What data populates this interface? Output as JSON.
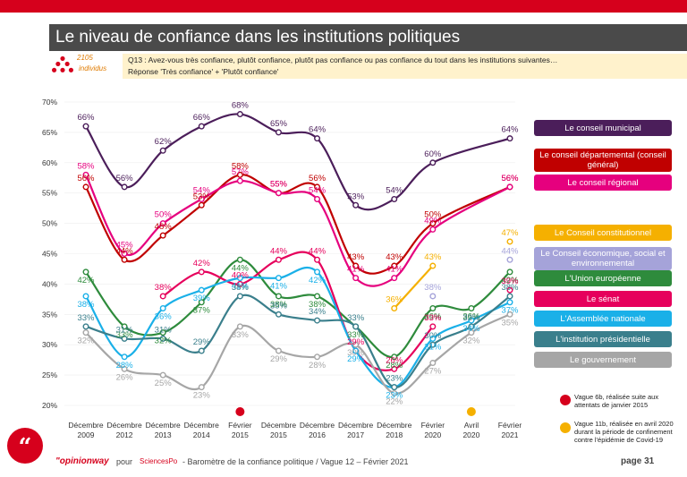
{
  "header": {
    "title": "Le niveau de confiance dans les institutions politiques",
    "sample_n": "2105",
    "sample_unit": "individus",
    "question": "Q13 : Avez-vous très confiance, plutôt confiance, plutôt pas confiance ou pas confiance du tout dans les institutions suivantes…",
    "answer": "Réponse 'Très confiance' + 'Plutôt confiance'"
  },
  "chart_data": {
    "type": "line",
    "ylim": [
      20,
      70
    ],
    "yticks": [
      "20%",
      "25%",
      "30%",
      "35%",
      "40%",
      "45%",
      "50%",
      "55%",
      "60%",
      "65%",
      "70%"
    ],
    "categories": [
      [
        "Décembre",
        "2009"
      ],
      [
        "Décembre",
        "2012"
      ],
      [
        "Décembre",
        "2013"
      ],
      [
        "Décembre",
        "2014"
      ],
      [
        "Février",
        "2015"
      ],
      [
        "Décembre",
        "2015"
      ],
      [
        "Décembre",
        "2016"
      ],
      [
        "Décembre",
        "2017"
      ],
      [
        "Décembre",
        "2018"
      ],
      [
        "Février",
        "2020"
      ],
      [
        "Avril",
        "2020"
      ],
      [
        "Février",
        "2021"
      ]
    ],
    "series": [
      {
        "name": "Le conseil municipal",
        "color": "#4b1e5a",
        "values": [
          66,
          56,
          62,
          66,
          68,
          65,
          64,
          53,
          54,
          60,
          null,
          64
        ],
        "labels": [
          "66%",
          "56%",
          "62%",
          "66%",
          "68%",
          "65%",
          "64%",
          "53%",
          "54%",
          "60%",
          null,
          "64%"
        ]
      },
      {
        "name": "Le conseil départemental (conseil général)",
        "color": "#c00000",
        "values": [
          56,
          44,
          48,
          53,
          58,
          55,
          56,
          43,
          43,
          50,
          null,
          56
        ],
        "labels": [
          "56%",
          "44%",
          "48%",
          "53%",
          "58%",
          "55%",
          "56%",
          "43%",
          "43%",
          "50%",
          null,
          "56%"
        ]
      },
      {
        "name": "Le conseil régional",
        "color": "#e6007e",
        "values": [
          58,
          45,
          50,
          54,
          57,
          55,
          54,
          41,
          41,
          49,
          null,
          56
        ],
        "labels": [
          "58%",
          "45%",
          "50%",
          "54%",
          "57%",
          "55%",
          "54%",
          "41%",
          "41%",
          "49%",
          null,
          "56%"
        ]
      },
      {
        "name": "Le Conseil constitutionnel",
        "color": "#f5b000",
        "values": [
          null,
          null,
          null,
          null,
          null,
          null,
          null,
          null,
          36,
          43,
          null,
          47
        ],
        "labels": [
          null,
          null,
          null,
          null,
          null,
          null,
          null,
          null,
          "36%",
          "43%",
          null,
          "47%"
        ]
      },
      {
        "name": "Le Conseil économique, social et environnemental",
        "color": "#a5a3d9",
        "values": [
          null,
          null,
          null,
          null,
          null,
          null,
          null,
          null,
          null,
          38,
          null,
          44
        ],
        "labels": [
          null,
          null,
          null,
          null,
          null,
          null,
          null,
          null,
          null,
          "38%",
          null,
          "44%"
        ]
      },
      {
        "name": "L'Union européenne",
        "color": "#2e8b3c",
        "values": [
          42,
          33,
          32,
          37,
          44,
          38,
          38,
          33,
          28,
          36,
          36,
          42
        ],
        "labels": [
          "42%",
          "33%",
          "32%",
          "37%",
          "44%",
          "38%",
          "38%",
          "33%",
          "28%",
          "36%",
          "36%",
          "42%"
        ]
      },
      {
        "name": "Le sénat",
        "color": "#e6005c",
        "values": [
          null,
          null,
          38,
          42,
          40,
          44,
          44,
          29,
          26,
          33,
          null,
          39
        ],
        "labels": [
          null,
          null,
          "38%",
          "42%",
          "40%",
          "44%",
          "44%",
          "29%",
          "26%",
          "33%",
          null,
          "39%"
        ]
      },
      {
        "name": "L'Assemblée nationale",
        "color": "#1ab0e8",
        "values": [
          38,
          28,
          36,
          39,
          41,
          41,
          42,
          29,
          23,
          31,
          34,
          37
        ],
        "labels": [
          "38%",
          "28%",
          "36%",
          "39%",
          "41%",
          "41%",
          "42%",
          "29%",
          "23%",
          "31%",
          "34%",
          "37%"
        ]
      },
      {
        "name": "L'institution présidentielle",
        "color": "#3a7f8c",
        "values": [
          33,
          31,
          31,
          29,
          38,
          35,
          34,
          33,
          23,
          30,
          33,
          38
        ],
        "labels": [
          "33%",
          "31%",
          "31%",
          "29%",
          "38%",
          "35%",
          "34%",
          "33%",
          "23%",
          "30%",
          "33%",
          "38%"
        ]
      },
      {
        "name": "Le gouvernement",
        "color": "#a6a6a6",
        "values": [
          32,
          26,
          25,
          23,
          33,
          29,
          28,
          30,
          22,
          27,
          32,
          35
        ],
        "labels": [
          "32%",
          "26%",
          "25%",
          "23%",
          "33%",
          "29%",
          "28%",
          "30%",
          "22%",
          "27%",
          "32%",
          "35%"
        ]
      }
    ]
  },
  "legend": [
    {
      "label": "Le conseil municipal",
      "color": "#4b1e5a"
    },
    {
      "label": "Le conseil départemental (conseil général)",
      "color": "#c00000"
    },
    {
      "label": "Le conseil régional",
      "color": "#e6007e"
    },
    {
      "label": "Le Conseil constitutionnel",
      "color": "#f5b000"
    },
    {
      "label": "Le Conseil économique, social et environnemental",
      "color": "#a5a3d9"
    },
    {
      "label": "L'Union européenne",
      "color": "#2e8b3c"
    },
    {
      "label": "Le sénat",
      "color": "#e6005c"
    },
    {
      "label": "L'Assemblée nationale",
      "color": "#1ab0e8"
    },
    {
      "label": "L'institution présidentielle",
      "color": "#3a7f8c"
    },
    {
      "label": "Le gouvernement",
      "color": "#a6a6a6"
    }
  ],
  "notes": [
    {
      "text": "Vague 6b, réalisée suite aux attentats de janvier 2015",
      "color": "#d6001c"
    },
    {
      "text": "Vague 11b, réalisée en avril 2020 durant la période de confinement contre l'épidémie de Covid-19",
      "color": "#f5b000"
    }
  ],
  "footer": {
    "brand": "\"opinionway",
    "pour": "pour",
    "partner": "SciencesPo",
    "text": "- Baromètre de la confiance politique / Vague 12 – Février 2021",
    "page": "page 31",
    "logo_glyph": "“"
  }
}
